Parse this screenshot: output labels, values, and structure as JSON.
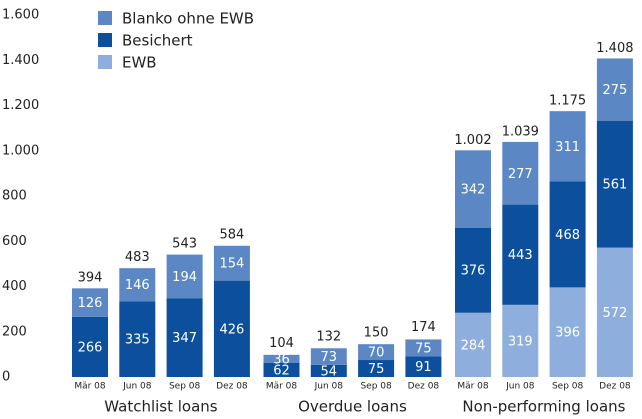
{
  "chart_data": {
    "type": "stacked_bar",
    "categories": [
      "Mär 08",
      "Jun 08",
      "Sep 08",
      "Dez 08",
      "Mär 08",
      "Jun 08",
      "Sep 08",
      "Dez 08",
      "Mär 08",
      "Jun 08",
      "Sep 08",
      "Dez 08"
    ],
    "groups": [
      "Watchlist loans",
      "Overdue loans",
      "Non-performing loans"
    ],
    "series": [
      {
        "name": "EWB",
        "color": "#8eaedd",
        "values": [
          null,
          null,
          null,
          null,
          null,
          null,
          null,
          null,
          284,
          319,
          396,
          572
        ]
      },
      {
        "name": "Besichert",
        "color": "#0c4f9c",
        "values": [
          266,
          335,
          347,
          426,
          62,
          54,
          75,
          91,
          376,
          443,
          468,
          561
        ]
      },
      {
        "name": "Blanko ohne EWB",
        "color": "#5b87c5",
        "values": [
          126,
          146,
          194,
          154,
          36,
          73,
          70,
          75,
          342,
          277,
          311,
          275
        ]
      }
    ],
    "totals": {
      "values": [
        394,
        483,
        543,
        584,
        104,
        132,
        150,
        174,
        1002,
        1039,
        1175,
        1408
      ],
      "value_labels": [
        "394",
        "483",
        "543",
        "584",
        "104",
        "132",
        "150",
        "174",
        "1.002",
        "1.039",
        "1.175",
        "1.408"
      ]
    },
    "ylim": [
      0,
      1600
    ],
    "yticks": [
      0,
      200,
      400,
      600,
      800,
      {
        "value": 1000,
        "label": "1.000"
      },
      {
        "value": 1200,
        "label": "1.200"
      },
      {
        "value": 1400,
        "label": "1.400"
      },
      {
        "value": 1600,
        "label": "1.600"
      }
    ],
    "legend": "top-left"
  }
}
